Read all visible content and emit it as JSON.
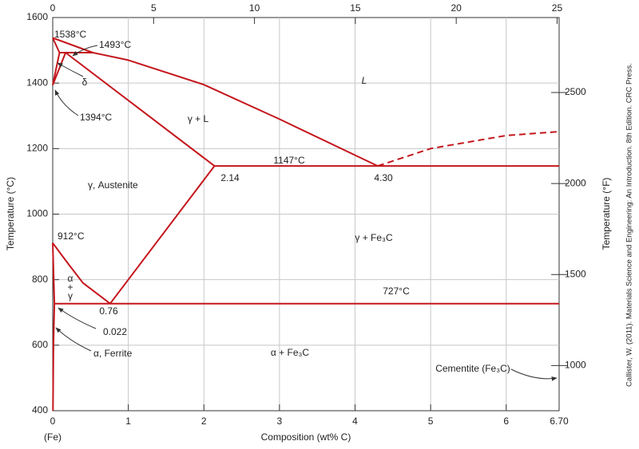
{
  "chart_data": {
    "type": "line",
    "xlabel": "Composition (wt% C)",
    "ylabel": "Temperature (°C)",
    "y2label": "Temperature (°F)",
    "xlim": [
      0,
      6.7
    ],
    "xticks": [
      0,
      1,
      2,
      3,
      4,
      5,
      6,
      {
        "value": 6.7,
        "label": "6.70"
      }
    ],
    "x2lim": [
      0,
      25.1
    ],
    "x2ticks": [
      0,
      5,
      10,
      15,
      20,
      25
    ],
    "ylim": [
      400,
      1600
    ],
    "yticks": [
      400,
      600,
      800,
      1000,
      1200,
      1400,
      1600
    ],
    "y2lim": [
      752,
      2912
    ],
    "y2ticks": [
      1000,
      1500,
      2000,
      2500
    ],
    "grid": true,
    "series": [
      {
        "color": "#c4161c",
        "x": [
          0,
          0.53,
          1,
          2,
          3,
          4.3
        ],
        "values": [
          1538,
          1493,
          1470,
          1395,
          1290,
          1147
        ]
      },
      {
        "color": "#c4161c",
        "x": [
          0,
          0.09
        ],
        "values": [
          1538,
          1493
        ]
      },
      {
        "color": "#c4161c",
        "x": [
          0.09,
          0.53
        ],
        "values": [
          1493,
          1493
        ]
      },
      {
        "color": "#c4161c",
        "x": [
          0.17,
          2.14
        ],
        "values": [
          1493,
          1147
        ]
      },
      {
        "color": "#c4161c",
        "x": [
          0,
          0.09
        ],
        "values": [
          1394,
          1493
        ]
      },
      {
        "color": "#c4161c",
        "x": [
          0,
          0.17
        ],
        "values": [
          1394,
          1493
        ]
      },
      {
        "color": "#c4161c",
        "x": [
          4.3,
          5,
          6,
          6.7
        ],
        "values": [
          1147,
          1200,
          1240,
          1252
        ],
        "dashed": true
      },
      {
        "color": "#c4161c",
        "x": [
          2.14,
          6.7
        ],
        "values": [
          1147,
          1147
        ]
      },
      {
        "color": "#c4161c",
        "x": [
          2.14,
          0.76
        ],
        "values": [
          1147,
          727
        ]
      },
      {
        "color": "#c4161c",
        "x": [
          0,
          0.2,
          0.4,
          0.76
        ],
        "values": [
          912,
          850,
          790,
          727
        ]
      },
      {
        "color": "#c4161c",
        "x": [
          0,
          0.022
        ],
        "values": [
          912,
          727
        ]
      },
      {
        "color": "#c4161c",
        "x": [
          0.022,
          6.7
        ],
        "values": [
          727,
          727
        ]
      },
      {
        "color": "#c4161c",
        "x": [
          0.022,
          0.01,
          0.003
        ],
        "values": [
          727,
          600,
          400
        ]
      }
    ],
    "annotations": [
      "1538°C",
      "1493°C",
      "δ",
      "1394°C",
      "L",
      "γ + L",
      "1147°C",
      "2.14",
      "4.30",
      "γ, Austenite",
      "912°C",
      "γ + Fe₃C",
      "α",
      "+",
      "γ",
      "727°C",
      "0.76",
      "0.022",
      "α, Ferrite",
      "α + Fe₃C",
      "Cementite (Fe₃C)",
      "(Fe)"
    ],
    "credit": "Callister, W. (2011). Materials Science and Engineering: An Introduction. 8th Edition. CRC Press."
  }
}
